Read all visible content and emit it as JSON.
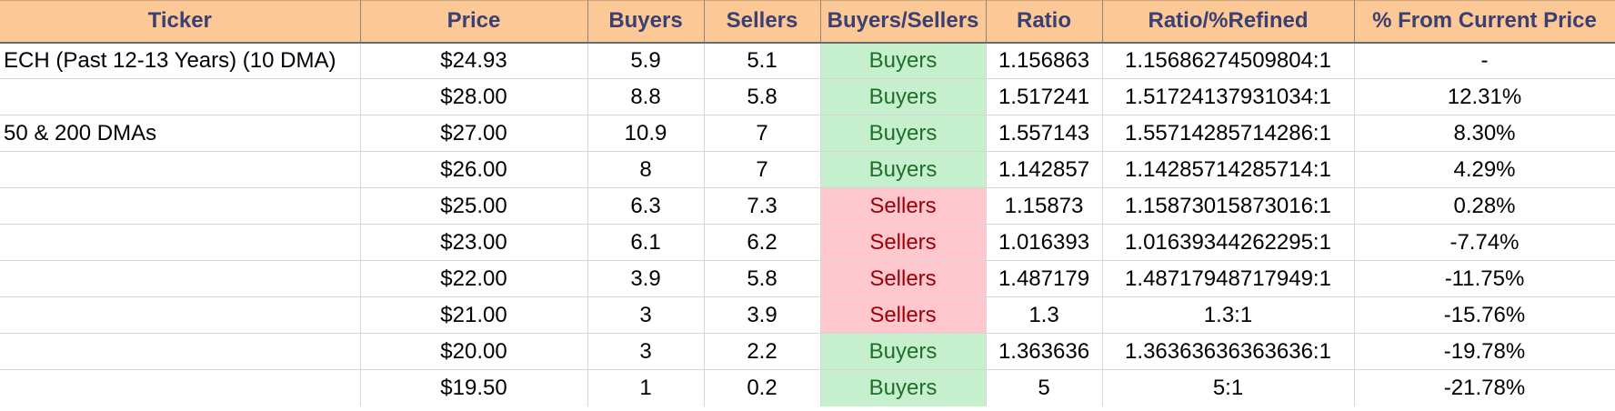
{
  "colors": {
    "header_bg": "#fcc895",
    "header_text": "#3a3f74",
    "buyers_bg": "#c6efce",
    "buyers_text": "#1e6f2b",
    "sellers_bg": "#ffc7ce",
    "sellers_text": "#9c0006"
  },
  "headers": [
    "Ticker",
    "Price",
    "Buyers",
    "Sellers",
    "Buyers/Sellers",
    "Ratio",
    "Ratio/%Refined",
    "% From Current Price"
  ],
  "rows": [
    {
      "ticker": "ECH (Past 12-13 Years) (10 DMA)",
      "price": "$24.93",
      "buyers": "5.9",
      "sellers": "5.1",
      "signal": "Buyers",
      "ratio": "1.156863",
      "refined": "1.15686274509804:1",
      "pct": "-"
    },
    {
      "ticker": "",
      "price": "$28.00",
      "buyers": "8.8",
      "sellers": "5.8",
      "signal": "Buyers",
      "ratio": "1.517241",
      "refined": "1.51724137931034:1",
      "pct": "12.31%"
    },
    {
      "ticker": "50 & 200 DMAs",
      "price": "$27.00",
      "buyers": "10.9",
      "sellers": "7",
      "signal": "Buyers",
      "ratio": "1.557143",
      "refined": "1.55714285714286:1",
      "pct": "8.30%"
    },
    {
      "ticker": "",
      "price": "$26.00",
      "buyers": "8",
      "sellers": "7",
      "signal": "Buyers",
      "ratio": "1.142857",
      "refined": "1.14285714285714:1",
      "pct": "4.29%"
    },
    {
      "ticker": "",
      "price": "$25.00",
      "buyers": "6.3",
      "sellers": "7.3",
      "signal": "Sellers",
      "ratio": "1.15873",
      "refined": "1.15873015873016:1",
      "pct": "0.28%"
    },
    {
      "ticker": "",
      "price": "$23.00",
      "buyers": "6.1",
      "sellers": "6.2",
      "signal": "Sellers",
      "ratio": "1.016393",
      "refined": "1.01639344262295:1",
      "pct": "-7.74%"
    },
    {
      "ticker": "",
      "price": "$22.00",
      "buyers": "3.9",
      "sellers": "5.8",
      "signal": "Sellers",
      "ratio": "1.487179",
      "refined": "1.48717948717949:1",
      "pct": "-11.75%"
    },
    {
      "ticker": "",
      "price": "$21.00",
      "buyers": "3",
      "sellers": "3.9",
      "signal": "Sellers",
      "ratio": "1.3",
      "refined": "1.3:1",
      "pct": "-15.76%"
    },
    {
      "ticker": "",
      "price": "$20.00",
      "buyers": "3",
      "sellers": "2.2",
      "signal": "Buyers",
      "ratio": "1.363636",
      "refined": "1.36363636363636:1",
      "pct": "-19.78%"
    },
    {
      "ticker": "",
      "price": "$19.50",
      "buyers": "1",
      "sellers": "0.2",
      "signal": "Buyers",
      "ratio": "5",
      "refined": "5:1",
      "pct": "-21.78%"
    }
  ]
}
